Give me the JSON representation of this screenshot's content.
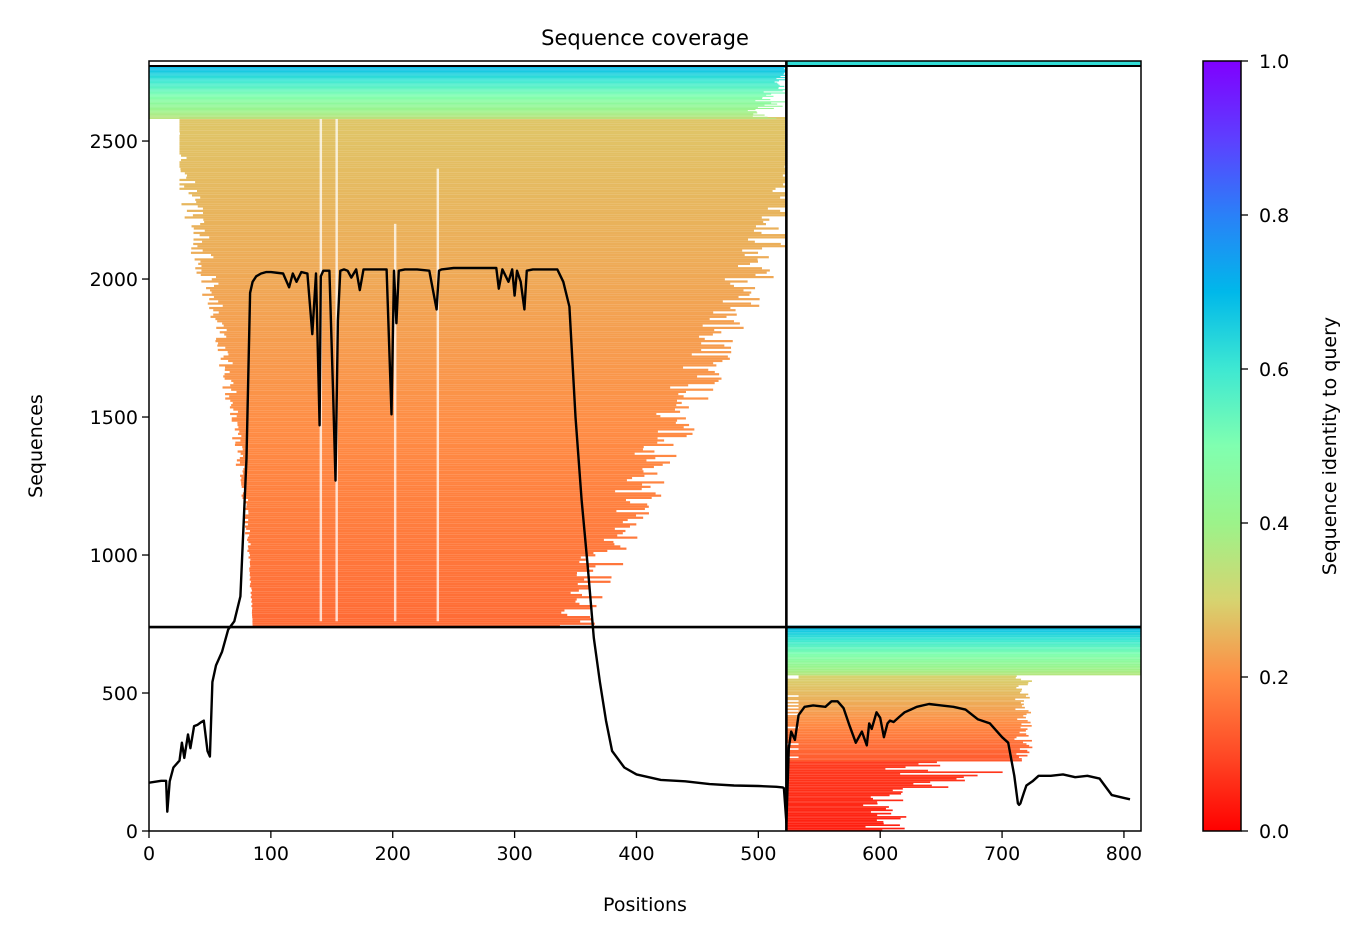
{
  "chart_data": {
    "type": "heatmap",
    "title": "Sequence coverage",
    "xlabel": "Positions",
    "ylabel": "Sequences",
    "xlim": [
      0,
      814
    ],
    "ylim": [
      0,
      2790
    ],
    "xticks": [
      0,
      100,
      200,
      300,
      400,
      500,
      600,
      700,
      800
    ],
    "yticks": [
      0,
      500,
      1000,
      1500,
      2000,
      2500
    ],
    "colorbar": {
      "label": "Sequence identity to query",
      "range": [
        0,
        1
      ],
      "ticks": [
        "0.0",
        "0.2",
        "0.4",
        "0.6",
        "0.8",
        "1.0"
      ],
      "colormap": "rainbow_r"
    },
    "chain_boundary_x": 523,
    "chain_boundary_y": 739,
    "coverage_line": {
      "x": [
        0,
        10,
        14,
        15,
        17,
        20,
        25,
        27,
        29,
        32,
        34,
        37,
        40,
        43,
        45,
        48,
        50,
        52,
        55,
        60,
        65,
        70,
        75,
        80,
        83,
        85,
        88,
        92,
        96,
        100,
        110,
        115,
        118,
        121,
        125,
        130,
        134,
        137,
        140,
        141,
        143,
        148,
        151,
        153,
        155,
        157,
        160,
        163,
        166,
        170,
        173,
        176,
        179,
        182,
        185,
        190,
        195,
        199,
        201,
        203,
        205,
        210,
        220,
        230,
        236,
        238,
        240,
        250,
        260,
        270,
        280,
        285,
        287,
        290,
        295,
        298,
        300,
        302,
        305,
        308,
        310,
        315,
        325,
        335,
        340,
        345,
        350,
        355,
        360,
        365,
        370,
        375,
        380,
        390,
        400,
        410,
        420,
        440,
        460,
        480,
        500,
        515,
        520,
        521,
        523,
        525,
        527,
        530,
        533,
        538,
        545,
        555,
        560,
        565,
        570,
        575,
        580,
        585,
        589,
        591,
        593,
        597,
        600,
        603,
        606,
        608,
        611,
        616,
        620,
        625,
        630,
        640,
        650,
        660,
        670,
        680,
        690,
        700,
        705,
        710,
        713,
        714,
        715,
        718,
        720,
        725,
        730,
        740,
        750,
        760,
        770,
        780,
        790,
        800,
        805,
        808,
        810,
        814
      ],
      "y": [
        175,
        182,
        182,
        70,
        180,
        230,
        255,
        320,
        265,
        350,
        300,
        380,
        385,
        395,
        400,
        290,
        270,
        540,
        600,
        650,
        730,
        760,
        850,
        1350,
        1950,
        1990,
        2010,
        2020,
        2025,
        2025,
        2020,
        1970,
        2020,
        1990,
        2025,
        2020,
        1800,
        2020,
        1470,
        2010,
        2030,
        2030,
        1600,
        1270,
        1850,
        2030,
        2035,
        2030,
        2005,
        2035,
        1960,
        2035,
        2035,
        2035,
        2035,
        2035,
        2035,
        1510,
        2030,
        1840,
        2030,
        2035,
        2035,
        2030,
        1890,
        2030,
        2035,
        2040,
        2040,
        2040,
        2040,
        2040,
        1965,
        2035,
        1990,
        2035,
        1940,
        2030,
        1990,
        1890,
        2030,
        2035,
        2035,
        2035,
        1990,
        1900,
        1500,
        1200,
        960,
        700,
        540,
        400,
        290,
        230,
        205,
        195,
        185,
        180,
        170,
        165,
        163,
        160,
        158,
        155,
        30,
        300,
        360,
        330,
        420,
        450,
        455,
        450,
        470,
        470,
        445,
        380,
        320,
        360,
        310,
        390,
        370,
        430,
        410,
        340,
        390,
        400,
        395,
        415,
        430,
        440,
        450,
        460,
        455,
        450,
        440,
        405,
        390,
        340,
        320,
        200,
        100,
        95,
        100,
        140,
        165,
        180,
        200,
        200,
        205,
        195,
        200,
        190,
        130,
        120,
        115
      ]
    }
  }
}
